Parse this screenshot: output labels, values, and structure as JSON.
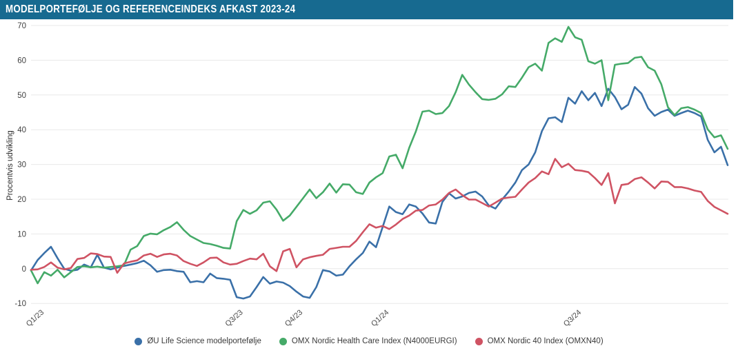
{
  "header": {
    "title": "MODELPORTEFØLJE OG REFERENCEINDEKS AFKAST 2023-24"
  },
  "colors": {
    "title_bar_bg": "#176a90",
    "title_text": "#ffffff",
    "gridline": "#e8e8e8",
    "tick_text": "#3f3f3f",
    "portfolio_blue": "#3a70a8",
    "healthcare_green": "#45aa68",
    "omxn40_red": "#cf5363"
  },
  "chart_data": {
    "type": "line",
    "title": "MODELPORTEFØLJE OG REFERENCEINDEKS AFKAST 2023-24",
    "xlabel": "",
    "ylabel": "Procentvis udvikling",
    "ylim": [
      -10,
      70
    ],
    "grid": "horizontal",
    "legend_position": "bottom",
    "yticks": [
      70,
      60,
      50,
      40,
      30,
      20,
      10,
      0,
      -10
    ],
    "xticks": [
      {
        "label": "Q1/23",
        "i": 0
      },
      {
        "label": "Q3/23",
        "i": 30
      },
      {
        "label": "Q4/23",
        "i": 39
      },
      {
        "label": "Q1/24",
        "i": 52
      },
      {
        "label": "Q3/24",
        "i": 81
      }
    ],
    "series": [
      {
        "key": "portfolio",
        "name": "ØU Life Science modelportefølje",
        "color": "#3a70a8",
        "values": [
          -0.5,
          2.5,
          4.5,
          6.3,
          3.0,
          0.0,
          -0.6,
          -0.3,
          1.2,
          0.4,
          4.0,
          0.3,
          -0.2,
          0.3,
          0.8,
          1.2,
          1.6,
          2.3,
          1.0,
          -0.9,
          -0.4,
          -0.3,
          -0.7,
          -0.9,
          -3.9,
          -3.6,
          -3.9,
          -1.4,
          -2.7,
          -2.9,
          -3.2,
          -8.2,
          -8.6,
          -8.0,
          -5.3,
          -2.4,
          -4.3,
          -3.7,
          -4.0,
          -5.0,
          -6.6,
          -8.0,
          -8.4,
          -5.3,
          -0.4,
          -0.8,
          -2.0,
          -1.7,
          0.7,
          2.7,
          4.5,
          7.8,
          6.2,
          12.0,
          17.9,
          16.3,
          15.7,
          18.5,
          17.9,
          15.9,
          13.3,
          13.0,
          19.2,
          21.7,
          20.2,
          20.8,
          21.8,
          22.2,
          20.8,
          18.2,
          17.3,
          19.9,
          22.2,
          24.8,
          28.4,
          30.0,
          33.5,
          39.6,
          43.3,
          43.6,
          42.2,
          49.2,
          47.5,
          51.1,
          48.5,
          50.6,
          46.8,
          51.8,
          49.4,
          45.9,
          47.2,
          52.3,
          50.4,
          46.2,
          44.0,
          45.1,
          45.8,
          44.0,
          44.8,
          45.5,
          44.8,
          43.8,
          37.1,
          33.5,
          35.1,
          29.8
        ]
      },
      {
        "key": "healthcare",
        "name": "OMX Nordic Health Care Index (N4000EURGI)",
        "color": "#45aa68",
        "values": [
          -0.5,
          -4.2,
          -1.0,
          -2.0,
          -0.3,
          -2.5,
          -1.0,
          0.5,
          0.7,
          0.4,
          0.6,
          0.3,
          0.5,
          0.7,
          1.0,
          5.5,
          6.5,
          9.4,
          10.1,
          9.9,
          11.1,
          12.0,
          13.4,
          11.2,
          9.4,
          8.4,
          7.4,
          7.1,
          6.6,
          6.0,
          5.8,
          13.7,
          16.9,
          15.8,
          16.8,
          19.0,
          19.4,
          17.0,
          13.8,
          15.3,
          17.8,
          20.3,
          22.8,
          20.3,
          22.0,
          24.5,
          21.9,
          24.3,
          24.2,
          22.0,
          21.5,
          24.8,
          26.3,
          27.5,
          32.3,
          32.8,
          28.9,
          34.8,
          39.5,
          45.2,
          45.5,
          44.5,
          44.8,
          46.8,
          50.8,
          55.8,
          53.0,
          50.8,
          48.8,
          48.6,
          48.9,
          50.2,
          52.5,
          52.3,
          55.0,
          58.0,
          59.0,
          57.0,
          65.0,
          66.3,
          65.3,
          69.6,
          66.6,
          65.9,
          59.7,
          59.0,
          60.0,
          48.5,
          58.7,
          59.0,
          59.2,
          60.7,
          61.0,
          58.0,
          57.0,
          53.1,
          46.5,
          44.2,
          46.2,
          46.5,
          45.8,
          44.8,
          40.1,
          37.8,
          38.4,
          34.5
        ]
      },
      {
        "key": "omxn40",
        "name": "OMX Nordic 40 Index (OMXN40)",
        "color": "#cf5363",
        "values": [
          -0.3,
          -0.2,
          0.5,
          1.8,
          0.3,
          -0.2,
          0.2,
          2.8,
          3.1,
          4.4,
          4.2,
          3.5,
          3.4,
          -1.2,
          1.5,
          2.0,
          2.4,
          3.8,
          4.3,
          3.4,
          4.1,
          4.3,
          3.8,
          2.2,
          1.4,
          0.8,
          1.8,
          3.1,
          3.2,
          1.8,
          1.2,
          1.4,
          2.2,
          2.9,
          2.7,
          4.3,
          0.7,
          -0.7,
          5.0,
          5.7,
          0.4,
          2.7,
          3.3,
          3.7,
          4.0,
          5.7,
          6.0,
          6.3,
          6.3,
          8.0,
          10.5,
          12.8,
          11.8,
          12.3,
          11.4,
          12.7,
          14.3,
          15.3,
          16.7,
          16.9,
          18.2,
          18.5,
          19.9,
          21.8,
          22.8,
          21.2,
          19.9,
          19.9,
          18.9,
          17.9,
          19.0,
          20.2,
          20.5,
          20.7,
          22.8,
          24.8,
          26.1,
          28.0,
          27.2,
          31.6,
          29.2,
          30.2,
          28.4,
          28.2,
          27.8,
          26.1,
          24.1,
          27.5,
          18.8,
          24.1,
          24.4,
          25.8,
          26.3,
          24.8,
          23.1,
          25.1,
          25.0,
          23.5,
          23.5,
          23.1,
          22.5,
          22.1,
          19.5,
          17.8,
          16.8,
          15.8
        ]
      }
    ]
  }
}
